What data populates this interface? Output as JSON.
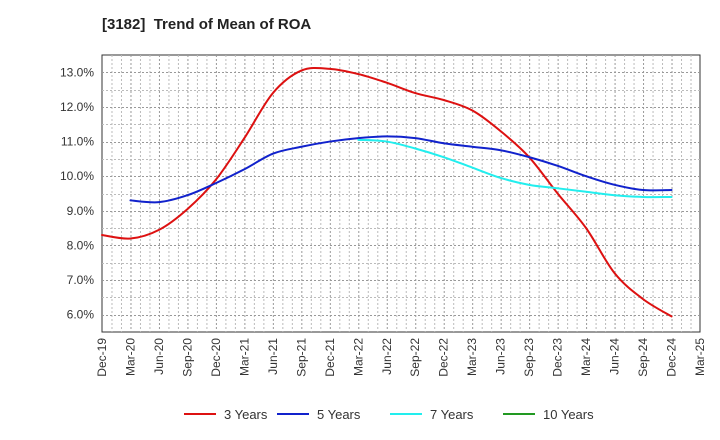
{
  "chart_data": {
    "type": "line",
    "title": "[3182]  Trend of Mean of ROA",
    "xlabel": "",
    "ylabel": "",
    "x": [
      "Dec-19",
      "Mar-20",
      "Jun-20",
      "Sep-20",
      "Dec-20",
      "Mar-21",
      "Jun-21",
      "Sep-21",
      "Dec-21",
      "Mar-22",
      "Jun-22",
      "Sep-22",
      "Dec-22",
      "Mar-23",
      "Jun-23",
      "Sep-23",
      "Dec-23",
      "Mar-24",
      "Jun-24",
      "Sep-24",
      "Dec-24",
      "Mar-25"
    ],
    "yticks": [
      "6.0%",
      "7.0%",
      "8.0%",
      "9.0%",
      "10.0%",
      "11.0%",
      "12.0%",
      "13.0%"
    ],
    "ylim": [
      5.5,
      13.5
    ],
    "grid": true,
    "legend_position": "bottom",
    "series": [
      {
        "name": "3 Years",
        "color": "#dd1111",
        "values": [
          8.3,
          8.2,
          8.45,
          9.05,
          9.9,
          11.1,
          12.4,
          13.05,
          13.1,
          12.95,
          12.7,
          12.4,
          12.2,
          11.9,
          11.3,
          10.55,
          9.5,
          8.5,
          7.2,
          6.45,
          5.95,
          null
        ]
      },
      {
        "name": "5 Years",
        "color": "#1122cc",
        "values": [
          null,
          9.3,
          9.25,
          9.45,
          9.8,
          10.2,
          10.65,
          10.85,
          11.0,
          11.1,
          11.15,
          11.1,
          10.95,
          10.85,
          10.75,
          10.55,
          10.3,
          10.0,
          9.75,
          9.6,
          9.6,
          null
        ]
      },
      {
        "name": "7 Years",
        "color": "#22eeee",
        "values": [
          null,
          null,
          null,
          null,
          null,
          null,
          null,
          null,
          null,
          11.05,
          11.0,
          10.8,
          10.55,
          10.25,
          9.95,
          9.75,
          9.65,
          9.55,
          9.45,
          9.4,
          9.4,
          null
        ]
      },
      {
        "name": "10 Years",
        "color": "#229922",
        "values": [
          null,
          null,
          null,
          null,
          null,
          null,
          null,
          null,
          null,
          null,
          null,
          null,
          null,
          null,
          null,
          null,
          null,
          null,
          null,
          null,
          null,
          null
        ]
      }
    ]
  }
}
